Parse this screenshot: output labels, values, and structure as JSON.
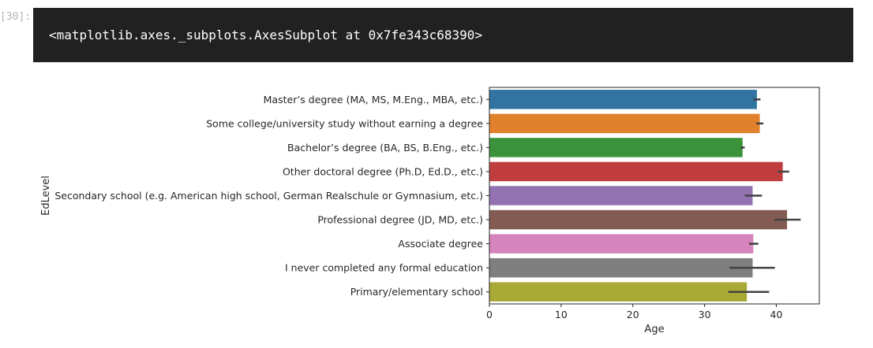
{
  "cell": {
    "prompt": "[30]:",
    "output": "<matplotlib.axes._subplots.AxesSubplot at 0x7fe343c68390>"
  },
  "chart_data": {
    "type": "bar",
    "orientation": "horizontal",
    "xlabel": "Age",
    "ylabel": "EdLevel",
    "xlim": [
      0,
      46
    ],
    "xticks": [
      0,
      10,
      20,
      30,
      40
    ],
    "grid": false,
    "categories": [
      "Master’s degree (MA, MS, M.Eng., MBA, etc.)",
      "Some college/university study without earning a degree",
      "Bachelor’s degree (BA, BS, B.Eng., etc.)",
      "Other doctoral degree (Ph.D, Ed.D., etc.)",
      "Secondary school (e.g. American high school, German Realschule or Gymnasium, etc.)",
      "Professional degree (JD, MD, etc.)",
      "Associate degree",
      "I never completed any formal education",
      "Primary/elementary school"
    ],
    "values": [
      37.3,
      37.7,
      35.3,
      40.9,
      36.7,
      41.5,
      36.8,
      36.7,
      35.9
    ],
    "ci_low": [
      36.8,
      37.2,
      35.0,
      40.2,
      35.6,
      39.7,
      36.2,
      33.5,
      33.3
    ],
    "ci_high": [
      37.8,
      38.2,
      35.6,
      41.8,
      38.0,
      43.4,
      37.5,
      39.8,
      39.0
    ],
    "colors": [
      "#3274a1",
      "#e1812c",
      "#3a923a",
      "#c03d3e",
      "#9372b2",
      "#845b53",
      "#d684bd",
      "#7f7f7f",
      "#a9aa35"
    ]
  }
}
